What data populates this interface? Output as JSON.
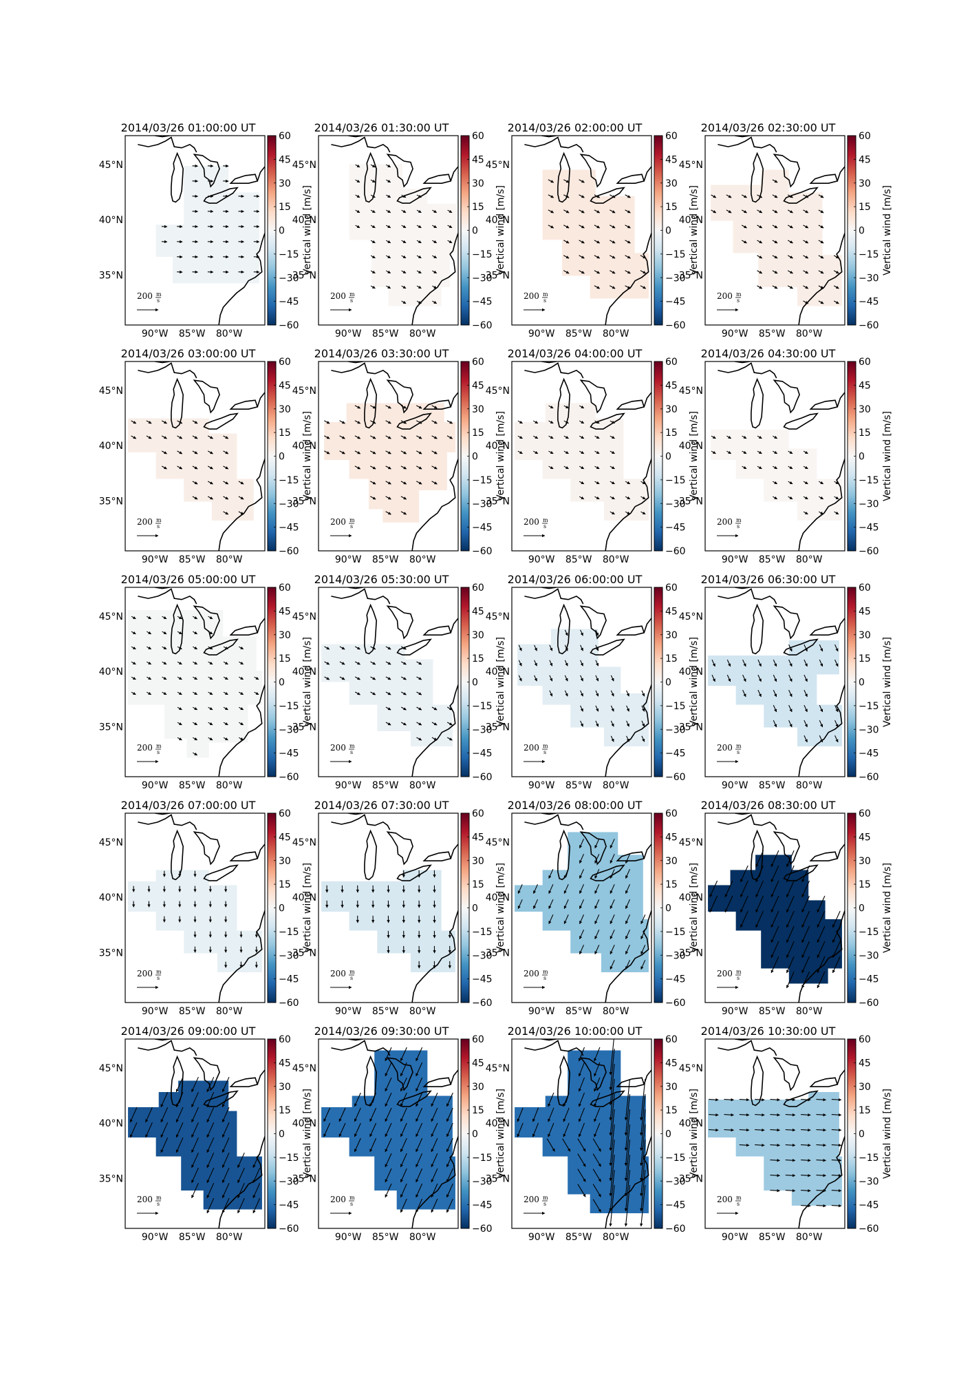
{
  "figure": {
    "timestamps": [
      "2014/03/26 01:00:00 UT",
      "2014/03/26 01:30:00 UT",
      "2014/03/26 02:00:00 UT",
      "2014/03/26 02:30:00 UT",
      "2014/03/26 03:00:00 UT",
      "2014/03/26 03:30:00 UT",
      "2014/03/26 04:00:00 UT",
      "2014/03/26 04:30:00 UT",
      "2014/03/26 05:00:00 UT",
      "2014/03/26 05:30:00 UT",
      "2014/03/26 06:00:00 UT",
      "2014/03/26 06:30:00 UT",
      "2014/03/26 07:00:00 UT",
      "2014/03/26 07:30:00 UT",
      "2014/03/26 08:00:00 UT",
      "2014/03/26 08:30:00 UT",
      "2014/03/26 09:00:00 UT",
      "2014/03/26 09:30:00 UT",
      "2014/03/26 10:00:00 UT",
      "2014/03/26 10:30:00 UT"
    ],
    "vertical_wind_ms": [
      -3,
      1,
      6,
      4,
      4,
      6,
      2,
      1,
      -1,
      -4,
      -7,
      -12,
      -5,
      -10,
      -24,
      -60,
      -52,
      -46,
      -46,
      -22
    ],
    "arrow_style": [
      "east",
      "se",
      "se",
      "se",
      "se",
      "se",
      "se",
      "se",
      "se",
      "se",
      "sse",
      "sse",
      "south",
      "south",
      "ssw",
      "ssw",
      "ssw",
      "ssw",
      "mixed",
      "east"
    ],
    "lat_ticks": [
      "45°N",
      "40°N",
      "35°N"
    ],
    "lon_ticks": [
      "90°W",
      "85°W",
      "80°W"
    ],
    "colorbar": {
      "ticks": [
        "60",
        "45",
        "30",
        "15",
        "0",
        "−15",
        "−30",
        "−45",
        "−60"
      ],
      "label": "Vertical wind [m/s]",
      "colors": [
        "#053061",
        "#2166ac",
        "#4393c3",
        "#92c5de",
        "#d1e5f0",
        "#f7f7f7",
        "#fddbc7",
        "#f4a582",
        "#d6604d",
        "#b2182b",
        "#67001f"
      ],
      "range": [
        -60,
        60
      ]
    },
    "scale": {
      "value": "200",
      "unit_num": "m",
      "unit_den": "s"
    }
  },
  "chart_data": {
    "type": "heatmap",
    "panels": 20,
    "layout": "5 rows x 4 columns",
    "variable": "Vertical wind [m/s]",
    "vmin": -60,
    "vmax": 60,
    "lat_ticks": [
      "45°N",
      "40°N",
      "35°N"
    ],
    "lon_ticks": [
      "90°W",
      "85°W",
      "80°W"
    ]
  }
}
